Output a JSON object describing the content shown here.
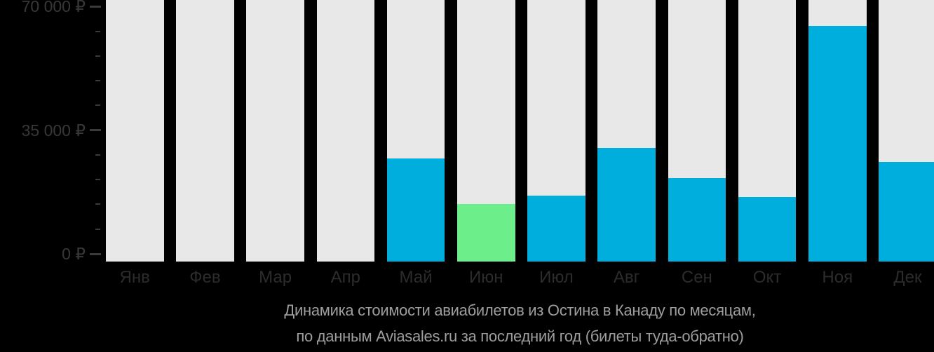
{
  "chart_data": {
    "type": "bar",
    "categories": [
      "Янв",
      "Фев",
      "Мар",
      "Апр",
      "Май",
      "Июн",
      "Июл",
      "Авг",
      "Сен",
      "Окт",
      "Ноя",
      "Дек"
    ],
    "values": [
      null,
      null,
      null,
      null,
      27000,
      14000,
      16500,
      30000,
      21500,
      16000,
      64500,
      26000
    ],
    "min_value_index": 5,
    "y_axis": {
      "max": 70000,
      "minor_tick_step": 7000,
      "major_ticks": [
        {
          "value": 0,
          "label": "0 ₽"
        },
        {
          "value": 35000,
          "label": "35 000 ₽"
        },
        {
          "value": 70000,
          "label": "70 000 ₽"
        }
      ]
    },
    "caption_line1": "Динамика стоимости авиабилетов из Остина в Канаду по месяцам,",
    "caption_line2": "по данным Aviasales.ru за последний год (билеты туда-обратно)",
    "colors": {
      "background": "#000000",
      "bar_price": "#00aedd",
      "bar_min_price": "#6cee8b",
      "bar_no_data": "#e8e8e8",
      "axis_text": "#383838",
      "month_text": "#2c2c2c",
      "tick": "#3a3a3a",
      "caption_text": "#9e9e9e"
    }
  }
}
